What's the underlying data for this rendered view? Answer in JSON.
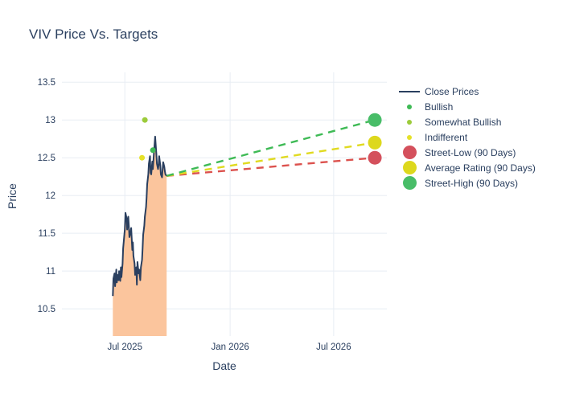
{
  "title": "VIV Price Vs. Targets",
  "legend": {
    "items": [
      {
        "label": "Close Prices",
        "swatch": "line",
        "color": "#2a3f5f"
      },
      {
        "label": "Bullish",
        "swatch": "dot-small",
        "color": "#3eba55"
      },
      {
        "label": "Somewhat Bullish",
        "swatch": "dot-small",
        "color": "#9ccb3b"
      },
      {
        "label": "Indifferent",
        "swatch": "dot-small",
        "color": "#e5e129"
      },
      {
        "label": "Street-Low (90 Days)",
        "swatch": "dot-large",
        "color": "#d4505c"
      },
      {
        "label": "Average Rating (90 Days)",
        "swatch": "dot-large",
        "color": "#ddd81d"
      },
      {
        "label": "Street-High (90 Days)",
        "swatch": "dot-large",
        "color": "#48bd68"
      }
    ]
  },
  "chart_data": {
    "type": "line",
    "title": "VIV Price Vs. Targets",
    "xlabel": "Date",
    "ylabel": "Price",
    "grid": true,
    "legend_position": "right",
    "x_range": [
      "2025-03-13",
      "2026-10-02"
    ],
    "ylim": [
      10.14,
      13.63
    ],
    "yticks": [
      10.5,
      11,
      11.5,
      12,
      12.5,
      13,
      13.5
    ],
    "xticks": [
      {
        "date": "2025-07-01",
        "label": "Jul 2025"
      },
      {
        "date": "2026-01-01",
        "label": "Jan 2026"
      },
      {
        "date": "2026-07-01",
        "label": "Jul 2026"
      }
    ],
    "colors": {
      "close_line": "#2a3f5f",
      "close_fill": "#fbc59d",
      "gridline": "#e8edf4",
      "tick_text": "#2a3f5f"
    },
    "series": [
      {
        "name": "Close Prices",
        "type": "area-line",
        "color": "#2a3f5f",
        "fill": "#fbc59d",
        "x": [
          "2025-06-10",
          "2025-06-11",
          "2025-06-13",
          "2025-06-14",
          "2025-06-16",
          "2025-06-17",
          "2025-06-18",
          "2025-06-20",
          "2025-06-21",
          "2025-06-23",
          "2025-06-24",
          "2025-06-25",
          "2025-06-27",
          "2025-06-28",
          "2025-07-01",
          "2025-07-02",
          "2025-07-04",
          "2025-07-05",
          "2025-07-07",
          "2025-07-08",
          "2025-07-09",
          "2025-07-11",
          "2025-07-12",
          "2025-07-14",
          "2025-07-15",
          "2025-07-16",
          "2025-07-18",
          "2025-07-19",
          "2025-07-21",
          "2025-07-22",
          "2025-07-23",
          "2025-07-25",
          "2025-07-26",
          "2025-07-28",
          "2025-07-29",
          "2025-07-31",
          "2025-08-01",
          "2025-08-02",
          "2025-08-04",
          "2025-08-05",
          "2025-08-07",
          "2025-08-08",
          "2025-08-09",
          "2025-08-11",
          "2025-08-12",
          "2025-08-14",
          "2025-08-15",
          "2025-08-16",
          "2025-08-18",
          "2025-08-19",
          "2025-08-21",
          "2025-08-22",
          "2025-08-23",
          "2025-08-25",
          "2025-08-26",
          "2025-08-28",
          "2025-08-29",
          "2025-08-30",
          "2025-09-01",
          "2025-09-02",
          "2025-09-04",
          "2025-09-05",
          "2025-09-06",
          "2025-09-08",
          "2025-09-09",
          "2025-09-10",
          "2025-09-12"
        ],
        "y": [
          10.67,
          10.9,
          10.97,
          10.8,
          11.02,
          10.85,
          10.95,
          10.88,
          11.0,
          10.87,
          11.05,
          10.92,
          11.1,
          11.3,
          11.55,
          11.77,
          11.7,
          11.55,
          11.72,
          11.6,
          11.45,
          11.52,
          11.57,
          11.28,
          11.38,
          11.2,
          11.1,
          10.95,
          11.05,
          10.82,
          11.12,
          10.97,
          11.02,
          10.88,
          11.05,
          11.15,
          11.3,
          11.48,
          11.6,
          11.72,
          11.85,
          11.98,
          12.15,
          12.28,
          12.42,
          12.52,
          12.3,
          12.28,
          12.45,
          12.35,
          12.58,
          12.68,
          12.78,
          12.55,
          12.42,
          12.35,
          12.4,
          12.52,
          12.4,
          12.28,
          12.24,
          12.35,
          12.44,
          12.38,
          12.32,
          12.28,
          12.26
        ]
      },
      {
        "name": "Indifferent",
        "type": "scatter",
        "color": "#e5e129",
        "x": [
          "2025-07-31"
        ],
        "y": [
          12.5
        ]
      },
      {
        "name": "Somewhat Bullish",
        "type": "scatter",
        "color": "#9ccb3b",
        "x": [
          "2025-08-05"
        ],
        "y": [
          13.0
        ]
      },
      {
        "name": "Bullish",
        "type": "scatter",
        "color": "#3eba55",
        "x": [
          "2025-08-19"
        ],
        "y": [
          12.6
        ]
      },
      {
        "name": "Street-Low (90 Days)",
        "type": "projection",
        "line_color": "#dc524e",
        "marker_color": "#d4505c",
        "from": {
          "x": "2025-09-12",
          "y": 12.26
        },
        "to": {
          "x": "2026-09-11",
          "y": 12.5
        }
      },
      {
        "name": "Average Rating (90 Days)",
        "type": "projection",
        "line_color": "#e0da20",
        "marker_color": "#ddd81d",
        "from": {
          "x": "2025-09-12",
          "y": 12.26
        },
        "to": {
          "x": "2026-09-11",
          "y": 12.7
        }
      },
      {
        "name": "Street-High (90 Days)",
        "type": "projection",
        "line_color": "#3eba55",
        "marker_color": "#48bd68",
        "from": {
          "x": "2025-09-12",
          "y": 12.26
        },
        "to": {
          "x": "2026-09-11",
          "y": 13.0
        }
      }
    ]
  }
}
